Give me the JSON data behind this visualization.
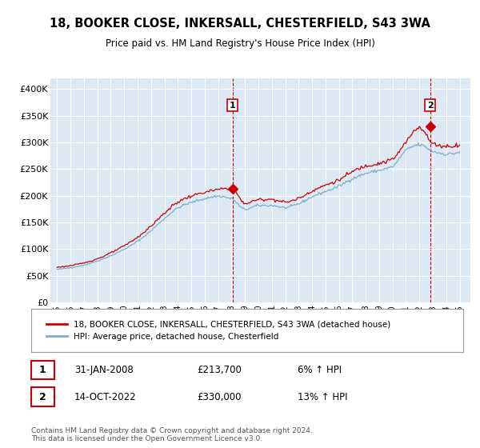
{
  "title": "18, BOOKER CLOSE, INKERSALL, CHESTERFIELD, S43 3WA",
  "subtitle": "Price paid vs. HM Land Registry's House Price Index (HPI)",
  "plot_bg_color": "#dce9f5",
  "house_color": "#cc0000",
  "hpi_color": "#7aadcf",
  "ylim": [
    0,
    420000
  ],
  "yticks": [
    0,
    50000,
    100000,
    150000,
    200000,
    250000,
    300000,
    350000,
    400000
  ],
  "ytick_labels": [
    "£0",
    "£50K",
    "£100K",
    "£150K",
    "£200K",
    "£250K",
    "£300K",
    "£350K",
    "£400K"
  ],
  "legend_house": "18, BOOKER CLOSE, INKERSALL, CHESTERFIELD, S43 3WA (detached house)",
  "legend_hpi": "HPI: Average price, detached house, Chesterfield",
  "sale1_date": "31-JAN-2008",
  "sale1_price": "£213,700",
  "sale1_hpi": "6% ↑ HPI",
  "sale2_date": "14-OCT-2022",
  "sale2_price": "£330,000",
  "sale2_hpi": "13% ↑ HPI",
  "copyright": "Contains HM Land Registry data © Crown copyright and database right 2024.\nThis data is licensed under the Open Government Licence v3.0.",
  "sale1_x": 2008.08,
  "sale1_y": 213700,
  "sale2_x": 2022.79,
  "sale2_y": 330000,
  "xlim_left": 1994.5,
  "xlim_right": 2025.8
}
